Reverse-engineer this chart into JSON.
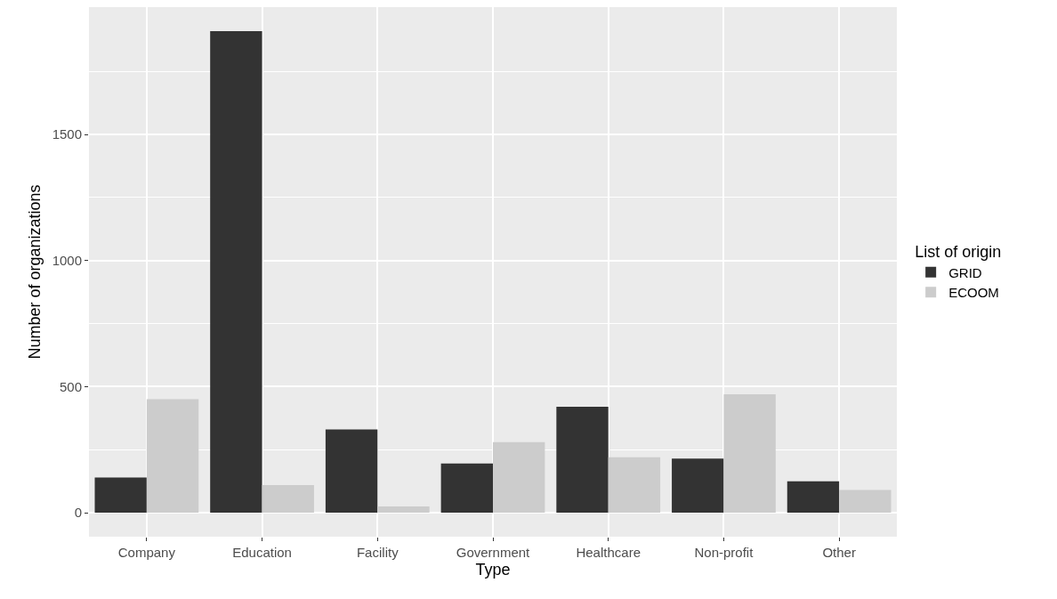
{
  "chart_data": {
    "type": "bar",
    "xlabel": "Type",
    "ylabel": "Number of organizations",
    "legend_title": "List of origin",
    "categories": [
      "Company",
      "Education",
      "Facility",
      "Government",
      "Healthcare",
      "Non-profit",
      "Other"
    ],
    "series": [
      {
        "name": "GRID",
        "color": "#333333",
        "values": [
          140,
          1910,
          330,
          195,
          420,
          215,
          125
        ]
      },
      {
        "name": "ECOOM",
        "color": "#cccccc",
        "values": [
          450,
          110,
          25,
          280,
          220,
          470,
          90
        ]
      }
    ],
    "ylim": [
      -95,
      2005
    ],
    "yticks": [
      0,
      500,
      1000,
      1500
    ],
    "grid": true,
    "legend": "right"
  }
}
